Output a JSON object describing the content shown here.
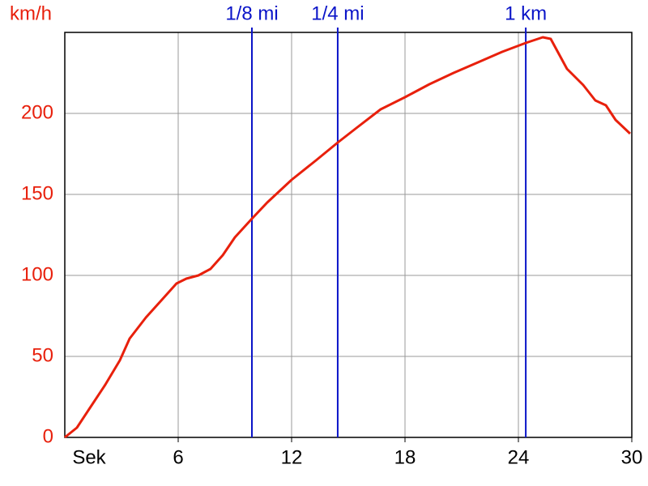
{
  "chart_data": {
    "type": "line",
    "ylabel": "km/h",
    "xlabel": "Sek",
    "x": [
      0,
      0.64,
      1.29,
      2.14,
      2.91,
      3.43,
      4.29,
      5.14,
      5.91,
      6.43,
      7.07,
      7.71,
      8.36,
      9.0,
      9.9,
      10.71,
      12.0,
      13.29,
      14.44,
      15.43,
      16.71,
      18.0,
      19.29,
      20.57,
      21.86,
      23.14,
      24.39,
      25.29,
      25.71,
      26.57,
      27.43,
      28.07,
      28.63,
      29.14,
      29.91
    ],
    "series": [
      {
        "color": "#e8200c",
        "values": [
          0,
          6,
          17.5,
          32.5,
          47.5,
          61,
          74,
          85,
          95,
          98,
          100,
          104,
          112.5,
          123.5,
          135,
          145,
          159,
          171,
          182,
          191,
          202.5,
          210,
          218,
          225,
          231.5,
          238,
          243.5,
          247,
          246,
          227.5,
          217.5,
          208,
          205,
          196,
          187.5
        ]
      }
    ],
    "xlim": [
      0,
      30
    ],
    "ylim": [
      0,
      250
    ],
    "xticks": [
      6,
      12,
      18,
      24,
      30
    ],
    "yticks": [
      0,
      50,
      100,
      150,
      200
    ],
    "grid": true,
    "axis_label_color": "#e8200c",
    "markers": [
      {
        "label": "1/8 mi",
        "x": 9.9
      },
      {
        "label": "1/4 mi",
        "x": 14.44
      },
      {
        "label": "1 km",
        "x": 24.39
      }
    ],
    "marker_color": "#0a14c8"
  }
}
